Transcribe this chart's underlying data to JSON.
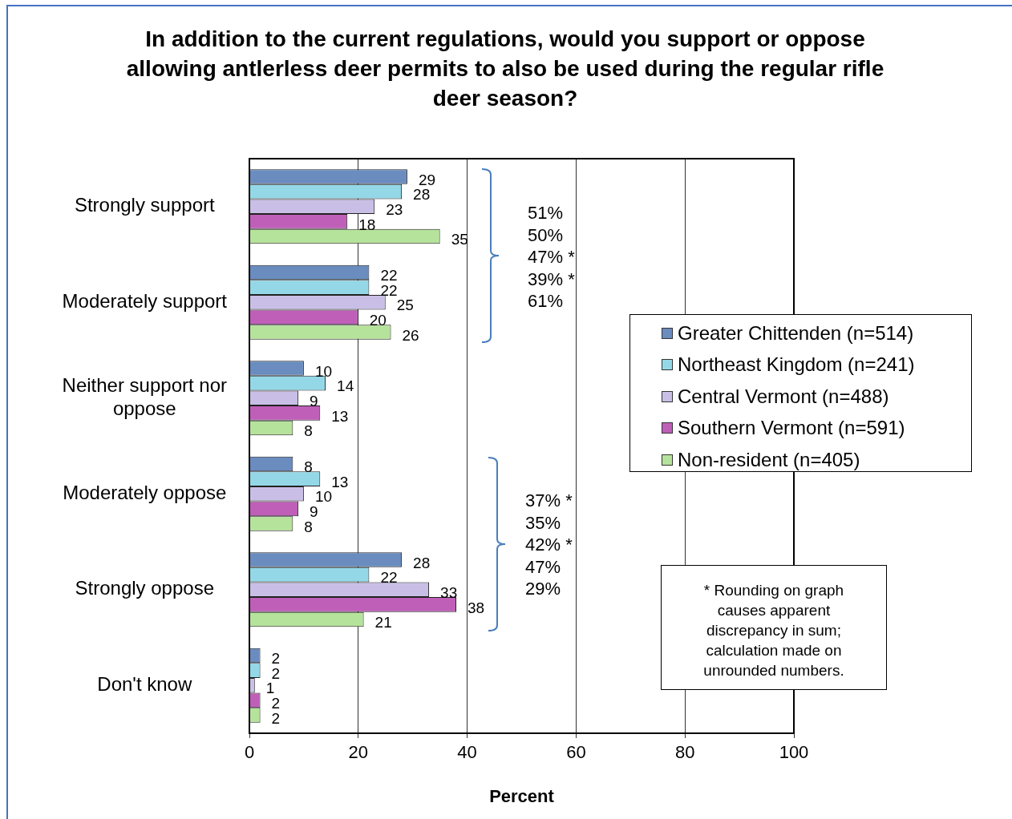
{
  "chart_data": {
    "type": "bar",
    "orientation": "horizontal",
    "title": "In addition to the current regulations, would you support or oppose allowing antlerless deer permits to also be used during the regular rifle deer season?",
    "xlabel": "Percent",
    "categories": [
      "Strongly support",
      "Moderately support",
      "Neither support nor oppose",
      "Moderately oppose",
      "Strongly oppose",
      "Don't know"
    ],
    "series": [
      {
        "name": "Greater Chittenden (n=514)",
        "color": "#6a8cbf",
        "values": [
          29,
          22,
          10,
          8,
          28,
          2
        ]
      },
      {
        "name": "Northeast Kingdom (n=241)",
        "color": "#94d8e8",
        "values": [
          28,
          22,
          14,
          13,
          22,
          2
        ]
      },
      {
        "name": "Central Vermont (n=488)",
        "color": "#c9bfe6",
        "values": [
          23,
          25,
          9,
          10,
          33,
          1
        ]
      },
      {
        "name": "Southern Vermont (n=591)",
        "color": "#bf5fb8",
        "values": [
          18,
          20,
          13,
          9,
          38,
          2
        ]
      },
      {
        "name": "Non-resident (n=405)",
        "color": "#b6e39b",
        "values": [
          35,
          26,
          8,
          8,
          21,
          2
        ]
      }
    ],
    "xlim": [
      0,
      100
    ],
    "xticks": [
      0,
      20,
      40,
      60,
      80,
      100
    ],
    "grid": "x",
    "legend": "right",
    "data_labels": true,
    "annotations": [
      "51%",
      "50%",
      "47% *",
      "39% *",
      "61%",
      "37% *",
      "35%",
      "42% *",
      "47%",
      "29%",
      "* Rounding on graph causes apparent discrepancy in sum; calculation made on unrounded numbers."
    ]
  }
}
